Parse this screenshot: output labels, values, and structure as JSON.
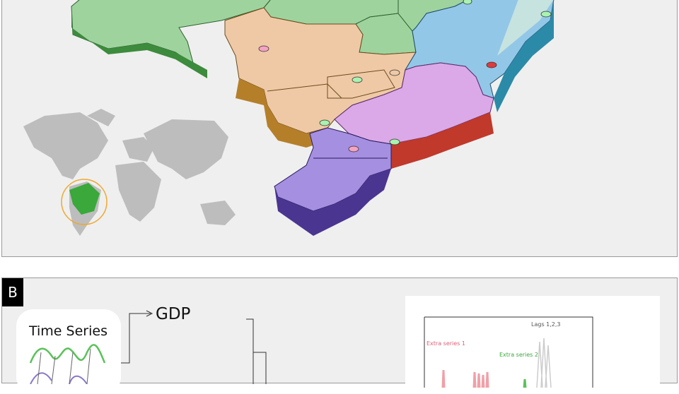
{
  "panel_b": {
    "letter": "B",
    "time_series_title": "Time Series",
    "target_label": "GDP",
    "plot": {
      "extra_series_1": "Extra series 1",
      "extra_series_2": "Extra series 2",
      "lags_label": "Lags 1,2,3"
    }
  },
  "colors": {
    "north": "#9ed39e",
    "north_side": "#3d8b3d",
    "central_west": "#efc9a6",
    "central_west_side": "#b57f2a",
    "northeast": "#93c7e8",
    "northeast_side": "#2b8aa8",
    "southeast": "#dba8e8",
    "southeast_side": "#c0392b",
    "south": "#a48fe0",
    "south_side": "#4a3590",
    "world_land": "#bdbdbd",
    "brazil_highlight": "#3aa83a",
    "highlight_ring": "#f0a830"
  }
}
